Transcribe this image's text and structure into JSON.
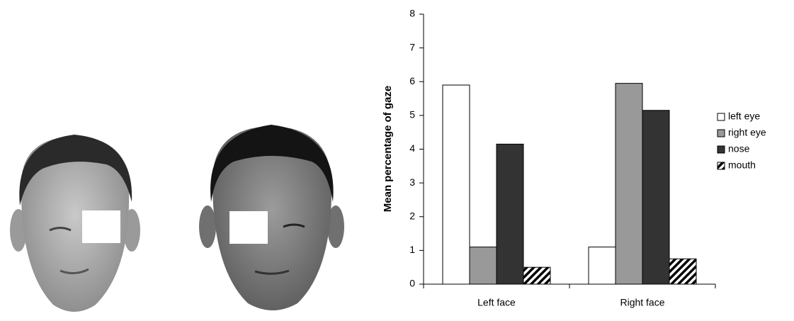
{
  "chart_data": {
    "type": "bar",
    "y_label": "Mean percentage of gaze",
    "categories": [
      "Left face",
      "Right face"
    ],
    "series": [
      {
        "name": "left eye",
        "color": "#ffffff",
        "values": [
          5.9,
          1.1
        ]
      },
      {
        "name": "right eye",
        "color": "#999999",
        "values": [
          1.1,
          5.95
        ]
      },
      {
        "name": "nose",
        "color": "#333333",
        "values": [
          4.15,
          5.15
        ]
      },
      {
        "name": "mouth",
        "color": "#000000",
        "pattern": "diagonal-hatch",
        "values": [
          0.5,
          0.75
        ]
      }
    ],
    "ylim": [
      0,
      8
    ],
    "yticks": [
      0,
      1,
      2,
      3,
      4,
      5,
      6,
      7,
      8
    ],
    "grid": false,
    "legend": "right"
  }
}
